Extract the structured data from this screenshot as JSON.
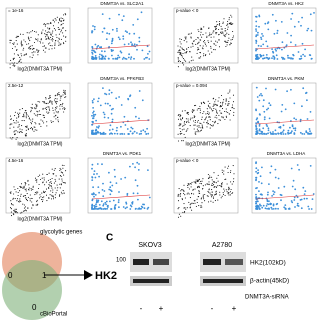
{
  "panels": [
    {
      "title": "",
      "stat": "= 1e-16",
      "xlabel": "log2(DNMT3A TPM)",
      "style": "black"
    },
    {
      "title": "DNMT3A vs. SLC2A1",
      "stat": "",
      "xlabel": "",
      "style": "blue"
    },
    {
      "title": "",
      "stat": "p-value < 0",
      "xlabel": "log2(DNMT3A TPM)",
      "style": "black"
    },
    {
      "title": "DNMT3A vs. HK2",
      "stat": "",
      "xlabel": "",
      "style": "blue"
    },
    {
      "title": "",
      "stat": "2.5e-12",
      "xlabel": "log2(DNMT3A TPM)",
      "style": "black"
    },
    {
      "title": "DNMT3A vs. PFKFB3",
      "stat": "",
      "xlabel": "",
      "style": "blue"
    },
    {
      "title": "",
      "stat": "p-value = 0.094",
      "xlabel": "log2(DNMT3A TPM)",
      "style": "black"
    },
    {
      "title": "DNMT3A vs. PKM",
      "stat": "",
      "xlabel": "",
      "style": "blue"
    },
    {
      "title": "",
      "stat": "4.5e-16",
      "xlabel": "log2(DNMT3A TPM)",
      "style": "black"
    },
    {
      "title": "DNMT3A vs. PDK1",
      "stat": "",
      "xlabel": "",
      "style": "blue"
    },
    {
      "title": "",
      "stat": "p-value < 0",
      "xlabel": "",
      "style": "black"
    },
    {
      "title": "DNMT3A vs. LDHA",
      "stat": "",
      "xlabel": "",
      "style": "blue"
    }
  ],
  "venn": {
    "label_top": "glycolytic genes",
    "label_bottom": "cBioPortal",
    "center": "1",
    "left": "0",
    "bottom": "0",
    "target": "HK2"
  },
  "blot": {
    "panel": "C",
    "cells": [
      "SKOV3",
      "A2780"
    ],
    "marker": "100",
    "bands": [
      "HK2(102kD)",
      "β-actin(45kD)"
    ],
    "treatment": "DNMT3A-siRNA",
    "signs": [
      "-",
      "+",
      "-",
      "+"
    ]
  }
}
